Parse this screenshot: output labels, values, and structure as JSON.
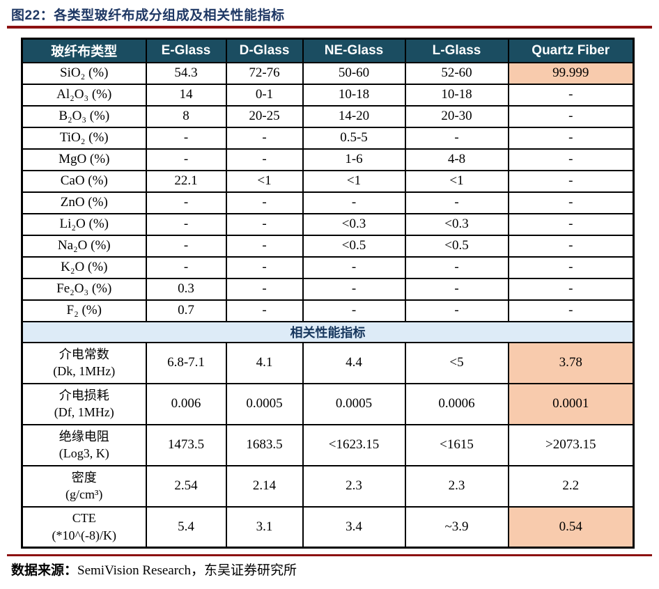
{
  "title": "图22：各类型玻纤布成分组成及相关性能指标",
  "colors": {
    "header_bg": "#1B4D61",
    "section_bg": "#DDEBF7",
    "highlight_bg": "#F8CBAD",
    "accent_rule": "#8C1111",
    "title_text": "#1F3864"
  },
  "table": {
    "headers": [
      "玻纤布类型",
      "E-Glass",
      "D-Glass",
      "NE-Glass",
      "L-Glass",
      "Quartz Fiber"
    ],
    "composition_rows": [
      {
        "label": "SiO₂ (%)",
        "values": [
          "54.3",
          "72-76",
          "50-60",
          "52-60",
          "99.999"
        ],
        "highlight_last": true
      },
      {
        "label": "Al₂O₃ (%)",
        "values": [
          "14",
          "0-1",
          "10-18",
          "10-18",
          "-"
        ],
        "highlight_last": false
      },
      {
        "label": "B₂O₃ (%)",
        "values": [
          "8",
          "20-25",
          "14-20",
          "20-30",
          "-"
        ],
        "highlight_last": false
      },
      {
        "label": "TiO₂ (%)",
        "values": [
          "-",
          "-",
          "0.5-5",
          "-",
          "-"
        ],
        "highlight_last": false
      },
      {
        "label": "MgO (%)",
        "values": [
          "-",
          "-",
          "1-6",
          "4-8",
          "-"
        ],
        "highlight_last": false
      },
      {
        "label": "CaO (%)",
        "values": [
          "22.1",
          "<1",
          "<1",
          "<1",
          "-"
        ],
        "highlight_last": false
      },
      {
        "label": "ZnO (%)",
        "values": [
          "-",
          "-",
          "-",
          "-",
          "-"
        ],
        "highlight_last": false
      },
      {
        "label": "Li₂O (%)",
        "values": [
          "-",
          "-",
          "<0.3",
          "<0.3",
          "-"
        ],
        "highlight_last": false
      },
      {
        "label": "Na₂O (%)",
        "values": [
          "-",
          "-",
          "<0.5",
          "<0.5",
          "-"
        ],
        "highlight_last": false
      },
      {
        "label": "K₂O (%)",
        "values": [
          "-",
          "-",
          "-",
          "-",
          "-"
        ],
        "highlight_last": false
      },
      {
        "label": "Fe₂O₃ (%)",
        "values": [
          "0.3",
          "-",
          "-",
          "-",
          "-"
        ],
        "highlight_last": false
      },
      {
        "label": "F₂ (%)",
        "values": [
          "0.7",
          "-",
          "-",
          "-",
          "-"
        ],
        "highlight_last": false
      }
    ],
    "section_header": "相关性能指标",
    "performance_rows": [
      {
        "label": "介电常数",
        "unit": "(Dk, 1MHz)",
        "values": [
          "6.8-7.1",
          "4.1",
          "4.4",
          "<5",
          "3.78"
        ],
        "highlight_last": true
      },
      {
        "label": "介电损耗",
        "unit": "(Df, 1MHz)",
        "values": [
          "0.006",
          "0.0005",
          "0.0005",
          "0.0006",
          "0.0001"
        ],
        "highlight_last": true
      },
      {
        "label": "绝缘电阻",
        "unit": "(Log3, K)",
        "values": [
          "1473.5",
          "1683.5",
          "<1623.15",
          "<1615",
          ">2073.15"
        ],
        "highlight_last": false
      },
      {
        "label": "密度",
        "unit": "(g/cm³)",
        "values": [
          "2.54",
          "2.14",
          "2.3",
          "2.3",
          "2.2"
        ],
        "highlight_last": false
      },
      {
        "label": "CTE",
        "unit": "(*10^(-8)/K)",
        "values": [
          "5.4",
          "3.1",
          "3.4",
          "~3.9",
          "0.54"
        ],
        "highlight_last": true
      }
    ]
  },
  "source": {
    "prefix": "数据来源：",
    "text": "SemiVision Research，东吴证券研究所"
  }
}
